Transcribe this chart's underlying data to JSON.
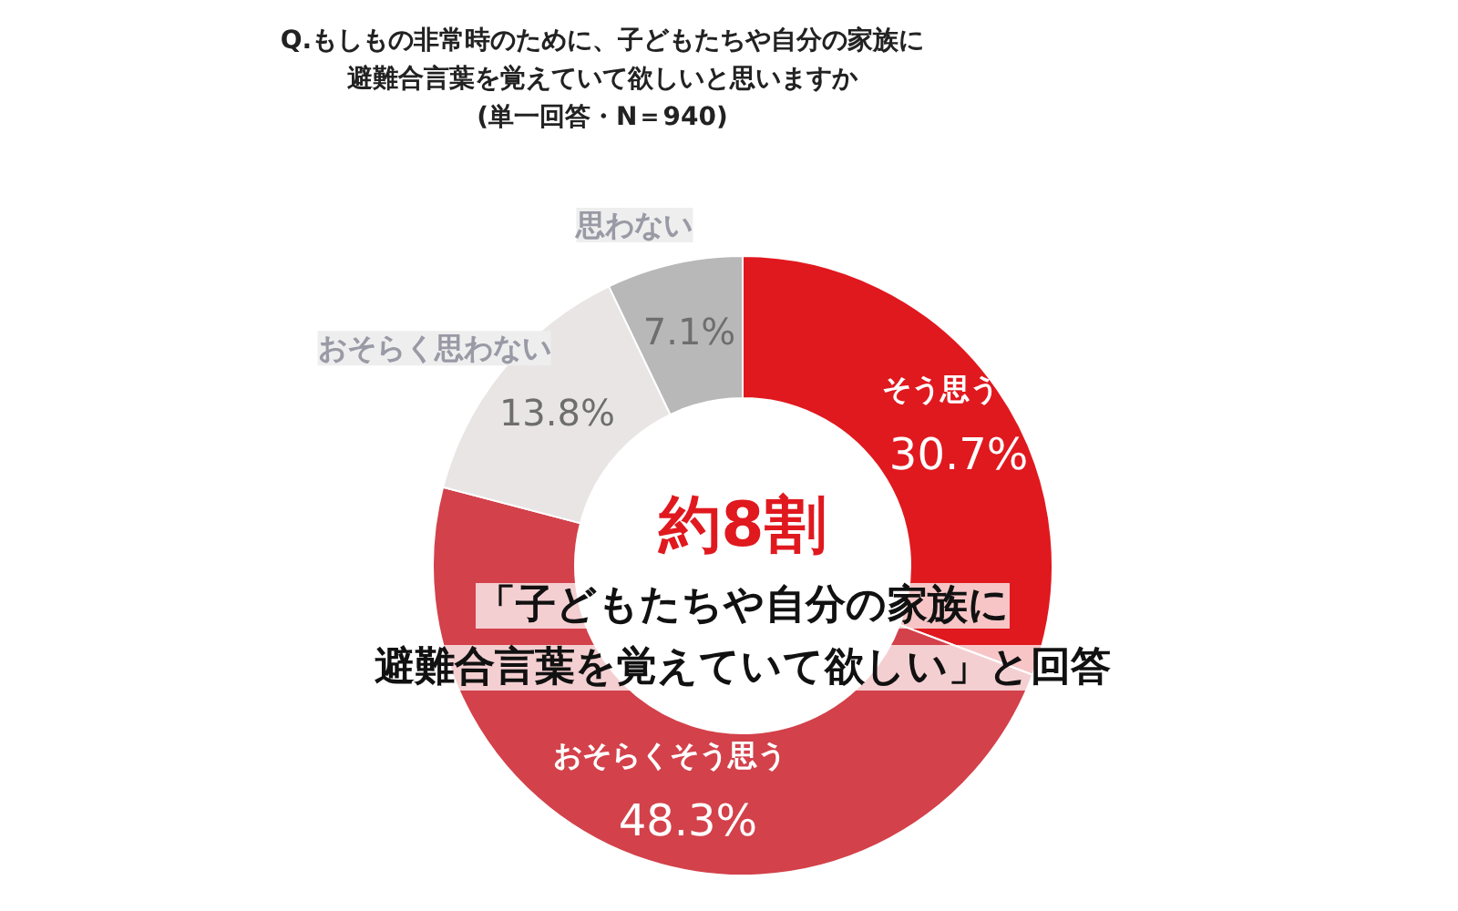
{
  "chart_data": {
    "type": "donut",
    "title": "Q.もしもの非常時のために、子どもたちや自分の家族に避難合言葉を覚えていて欲しいと思いますか",
    "subtitle": "(単一回答・N＝940)",
    "categories": [
      "そう思う",
      "おそらくそう思う",
      "おそらく思わない",
      "思わない"
    ],
    "values": [
      30.7,
      48.3,
      13.8,
      7.1
    ],
    "colors": [
      "#e0191f",
      "#d3414a",
      "#e9e5e5",
      "#b9b8b8"
    ],
    "value_labels": [
      "30.7%",
      "48.3%",
      "13.8%",
      "7.1%"
    ],
    "annotations": [
      "約8割",
      "「子どもたちや自分の家族に",
      "避難合言葉を覚えていて欲しい」と回答"
    ]
  }
}
